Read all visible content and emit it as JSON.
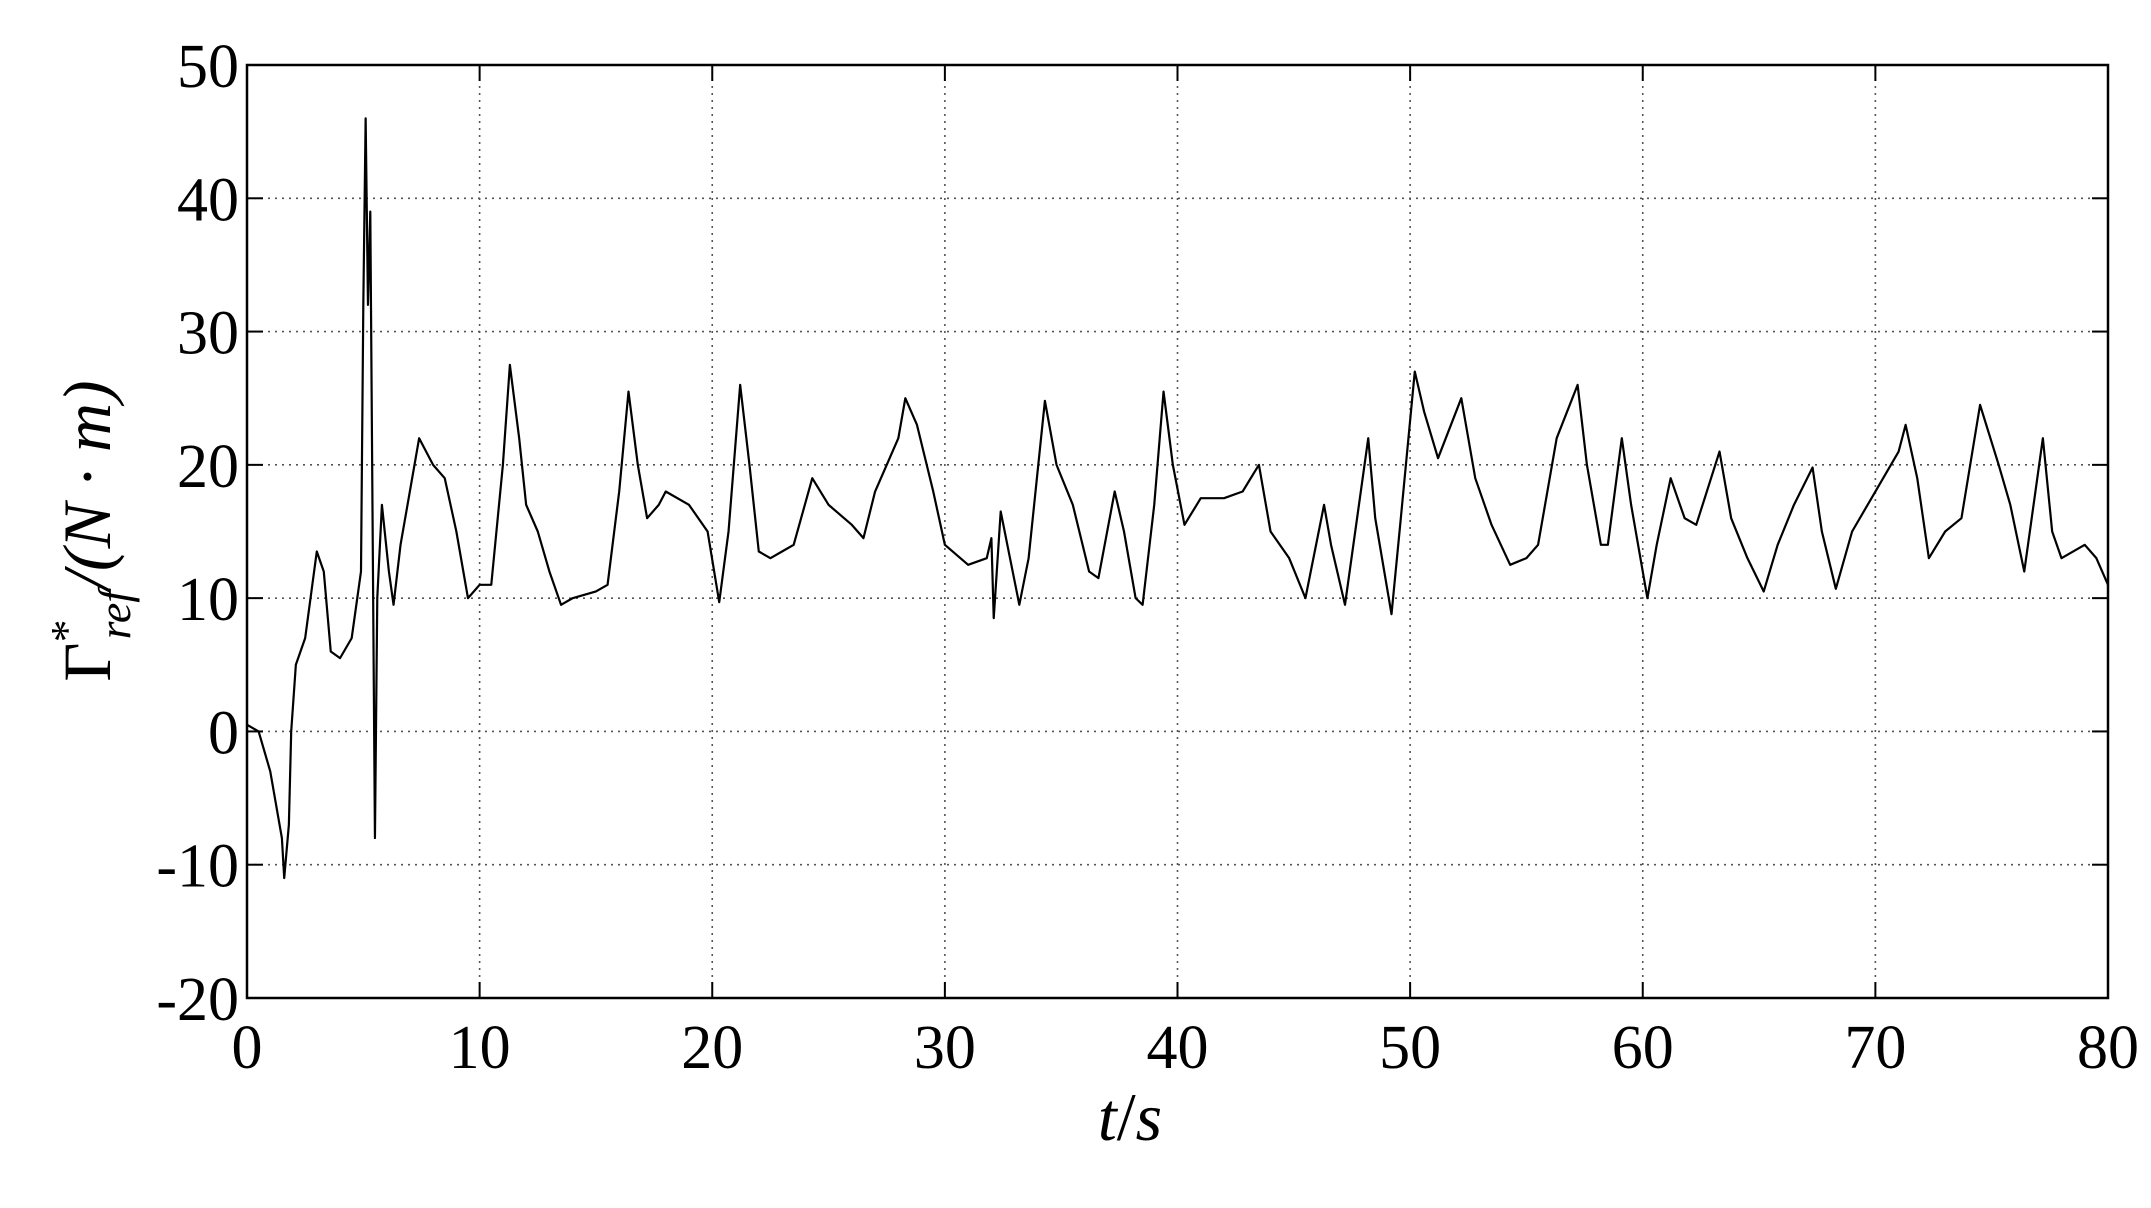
{
  "chart_data": {
    "type": "line",
    "ylabel": {
      "symbol": "Γ",
      "sup": "*",
      "sub": "ref",
      "unit": "/(N · m)"
    },
    "xlabel": {
      "t": "t",
      "slash": "/",
      "s": "s"
    },
    "xlim": [
      0,
      80
    ],
    "xticks": [
      0,
      10,
      20,
      30,
      40,
      50,
      60,
      70,
      80
    ],
    "ylim": [
      -20,
      50
    ],
    "yticks": [
      -20,
      -10,
      0,
      10,
      20,
      30,
      40,
      50
    ],
    "grid": true,
    "series": [
      {
        "color": "#000000",
        "x": [
          0,
          0.5,
          1,
          1.5,
          1.6,
          1.8,
          1.9,
          2.1,
          2.5,
          3,
          3.3,
          3.6,
          4,
          4.5,
          4.9,
          5,
          5.1,
          5.2,
          5.3,
          5.5,
          5.6,
          5.8,
          6.1,
          6.3,
          6.6,
          7,
          7.4,
          8,
          8.5,
          9,
          9.5,
          10,
          10.5,
          11,
          11.3,
          11.7,
          12,
          12.5,
          13,
          13.5,
          14,
          15,
          15.5,
          16,
          16.4,
          16.8,
          17.2,
          17.7,
          18,
          19,
          19.8,
          20.3,
          20.7,
          21.2,
          21.6,
          22,
          22.5,
          23,
          23.5,
          24.3,
          25,
          26,
          26.5,
          27,
          28,
          28.3,
          28.8,
          29.5,
          30,
          31,
          31.8,
          32,
          32.1,
          32.4,
          32.8,
          33.2,
          33.6,
          34.3,
          34.8,
          35.5,
          36.2,
          36.6,
          37.3,
          37.7,
          38.2,
          38.5,
          39,
          39.4,
          39.8,
          40.3,
          41,
          42,
          42.8,
          43.5,
          44,
          44.8,
          45.5,
          46.3,
          46.6,
          47.2,
          48.2,
          48.5,
          49.2,
          49.6,
          50.2,
          50.6,
          51.2,
          52.2,
          52.8,
          53.5,
          54.3,
          55,
          55.5,
          56.3,
          57.2,
          57.6,
          58.2,
          58.5,
          59.1,
          59.5,
          60.2,
          60.6,
          61.2,
          61.8,
          62.3,
          63.3,
          63.8,
          64.5,
          65.2,
          65.8,
          66.5,
          67.3,
          67.7,
          68.3,
          69,
          70,
          71,
          71.3,
          71.8,
          72.3,
          73,
          73.7,
          74.5,
          75.3,
          75.8,
          76.4,
          77.2,
          77.6,
          78,
          79,
          79.5,
          80
        ],
        "values": [
          0.5,
          0,
          -3,
          -8,
          -11,
          -7,
          0,
          5,
          7,
          13.5,
          12,
          6,
          5.5,
          7,
          12,
          32,
          46,
          32,
          39,
          -8,
          10,
          17,
          12,
          9.5,
          14,
          18,
          22,
          20,
          19,
          15,
          10,
          11,
          11,
          20,
          27.5,
          22,
          17,
          15,
          12,
          9.5,
          10,
          10.5,
          11,
          18,
          25.5,
          20,
          16,
          17,
          18,
          17,
          15,
          9.7,
          15,
          26,
          20,
          13.5,
          13,
          13.5,
          14,
          19,
          17,
          15.5,
          14.5,
          18,
          22,
          25,
          23,
          18,
          14,
          12.5,
          13,
          14.5,
          8.5,
          16.5,
          13,
          9.5,
          13,
          24.8,
          20,
          17,
          12,
          11.5,
          18,
          15,
          10,
          9.5,
          17,
          25.5,
          20,
          15.5,
          17.5,
          17.5,
          18,
          20,
          15,
          13,
          10,
          17,
          14,
          9.5,
          22,
          16,
          8.8,
          16,
          27,
          24,
          20.5,
          25,
          19,
          15.5,
          12.5,
          13,
          14,
          22,
          26,
          20,
          14,
          14,
          22,
          17,
          10,
          14,
          19,
          16,
          15.5,
          21,
          16,
          13,
          10.5,
          14,
          17,
          19.8,
          15,
          10.7,
          15,
          18,
          21,
          23,
          19,
          13,
          15,
          16,
          24.5,
          20,
          17,
          12,
          22,
          15,
          13,
          14,
          13,
          11
        ]
      }
    ]
  }
}
